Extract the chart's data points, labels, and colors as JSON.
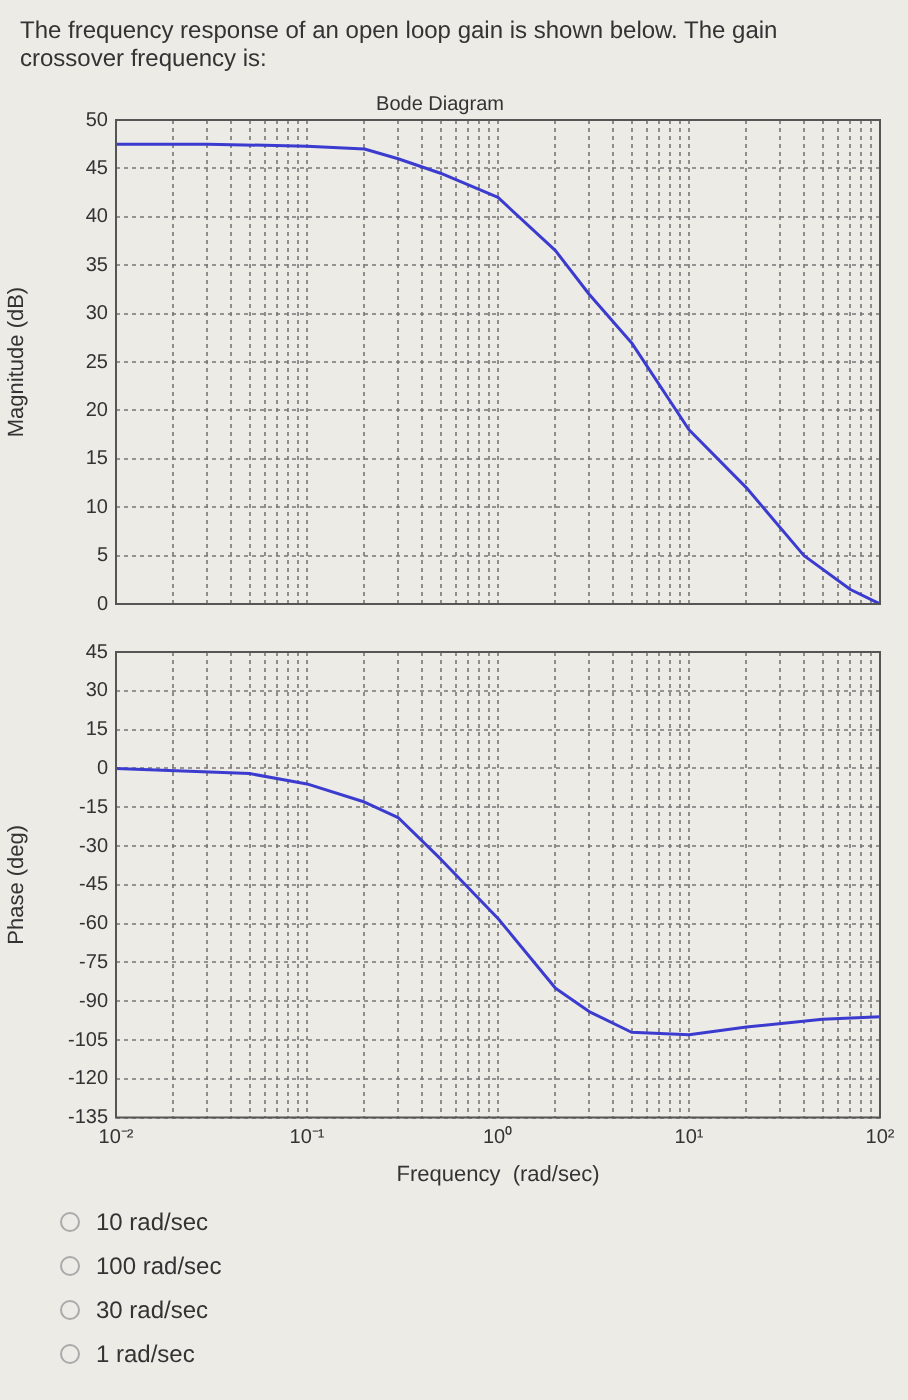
{
  "chart_data": [
    {
      "type": "line",
      "title": "The frequency response of an open loop gain is shown below. The gain crossover frequency is:",
      "subtitle": "Bode Diagram",
      "ylabel": "Magnitude (dB)",
      "log": "x",
      "grid": true,
      "tick_labels": "y",
      "marker": "none",
      "line_style": "solid",
      "x": [
        0.01,
        0.03,
        0.1,
        0.2,
        0.3,
        0.5,
        1,
        2,
        3,
        5,
        10,
        20,
        40,
        70,
        100
      ],
      "series": [
        {
          "color": "#3b3bd0",
          "values": [
            47.5,
            47.5,
            47.3,
            47,
            46,
            44.5,
            42,
            36.5,
            32,
            27,
            18,
            12,
            5,
            1.5,
            0
          ]
        }
      ],
      "xlim": [
        0.01,
        100
      ],
      "xticks": [
        {
          "value": 0.01,
          "label": null
        },
        {
          "value": 0.02,
          "label": null
        },
        {
          "value": 0.03,
          "label": null
        },
        {
          "value": 0.04,
          "label": null
        },
        {
          "value": 0.05,
          "label": null
        },
        {
          "value": 0.06,
          "label": null
        },
        {
          "value": 0.07,
          "label": null
        },
        {
          "value": 0.08,
          "label": null
        },
        {
          "value": 0.09,
          "label": null
        },
        {
          "value": 0.1,
          "label": null
        },
        {
          "value": 0.2,
          "label": null
        },
        {
          "value": 0.3,
          "label": null
        },
        {
          "value": 0.4,
          "label": null
        },
        {
          "value": 0.5,
          "label": null
        },
        {
          "value": 0.6,
          "label": null
        },
        {
          "value": 0.7,
          "label": null
        },
        {
          "value": 0.8,
          "label": null
        },
        {
          "value": 0.9,
          "label": null
        },
        {
          "value": 1,
          "label": null
        },
        {
          "value": 2,
          "label": null
        },
        {
          "value": 3,
          "label": null
        },
        {
          "value": 4,
          "label": null
        },
        {
          "value": 5,
          "label": null
        },
        {
          "value": 6,
          "label": null
        },
        {
          "value": 7,
          "label": null
        },
        {
          "value": 8,
          "label": null
        },
        {
          "value": 9,
          "label": null
        },
        {
          "value": 10,
          "label": null
        },
        {
          "value": 20,
          "label": null
        },
        {
          "value": 30,
          "label": null
        },
        {
          "value": 40,
          "label": null
        },
        {
          "value": 50,
          "label": null
        },
        {
          "value": 60,
          "label": null
        },
        {
          "value": 70,
          "label": null
        },
        {
          "value": 80,
          "label": null
        },
        {
          "value": 90,
          "label": null
        },
        {
          "value": 100,
          "label": null
        }
      ],
      "ylim": [
        0,
        50
      ],
      "yticks": [
        0,
        5,
        10,
        15,
        20,
        25,
        30,
        35,
        40,
        45,
        50
      ]
    },
    {
      "type": "line",
      "xlabel": "Frequency  (rad/sec)",
      "ylabel": "Phase (deg)",
      "log": "x",
      "grid": true,
      "marker": "none",
      "line_style": "solid",
      "annotations": [
        "10 rad/sec",
        "100 rad/sec",
        "30 rad/sec",
        "1 rad/sec"
      ],
      "x": [
        0.01,
        0.05,
        0.1,
        0.2,
        0.3,
        0.5,
        1,
        2,
        3,
        5,
        10,
        20,
        50,
        100
      ],
      "series": [
        {
          "color": "#3b3bd0",
          "values": [
            0,
            -2,
            -6,
            -13,
            -19,
            -35,
            -58,
            -85,
            -94,
            -102,
            -103,
            -100,
            -97,
            -96
          ]
        }
      ],
      "xlim": [
        0.01,
        100
      ],
      "xticks": [
        {
          "value": 0.01,
          "label": "10⁻²"
        },
        {
          "value": 0.02,
          "label": null
        },
        {
          "value": 0.03,
          "label": null
        },
        {
          "value": 0.04,
          "label": null
        },
        {
          "value": 0.05,
          "label": null
        },
        {
          "value": 0.06,
          "label": null
        },
        {
          "value": 0.07,
          "label": null
        },
        {
          "value": 0.08,
          "label": null
        },
        {
          "value": 0.09,
          "label": null
        },
        {
          "value": 0.1,
          "label": "10⁻¹"
        },
        {
          "value": 0.2,
          "label": null
        },
        {
          "value": 0.3,
          "label": null
        },
        {
          "value": 0.4,
          "label": null
        },
        {
          "value": 0.5,
          "label": null
        },
        {
          "value": 0.6,
          "label": null
        },
        {
          "value": 0.7,
          "label": null
        },
        {
          "value": 0.8,
          "label": null
        },
        {
          "value": 0.9,
          "label": null
        },
        {
          "value": 1,
          "label": "10⁰"
        },
        {
          "value": 2,
          "label": null
        },
        {
          "value": 3,
          "label": null
        },
        {
          "value": 4,
          "label": null
        },
        {
          "value": 5,
          "label": null
        },
        {
          "value": 6,
          "label": null
        },
        {
          "value": 7,
          "label": null
        },
        {
          "value": 8,
          "label": null
        },
        {
          "value": 9,
          "label": null
        },
        {
          "value": 10,
          "label": "10¹"
        },
        {
          "value": 20,
          "label": null
        },
        {
          "value": 30,
          "label": null
        },
        {
          "value": 40,
          "label": null
        },
        {
          "value": 50,
          "label": null
        },
        {
          "value": 60,
          "label": null
        },
        {
          "value": 70,
          "label": null
        },
        {
          "value": 80,
          "label": null
        },
        {
          "value": 90,
          "label": null
        },
        {
          "value": 100,
          "label": "10²"
        }
      ],
      "ylim": [
        -135,
        45
      ],
      "yticks": [
        -135,
        -120,
        -105,
        -90,
        -75,
        -60,
        -45,
        -30,
        -15,
        0,
        15,
        30,
        45
      ]
    }
  ]
}
